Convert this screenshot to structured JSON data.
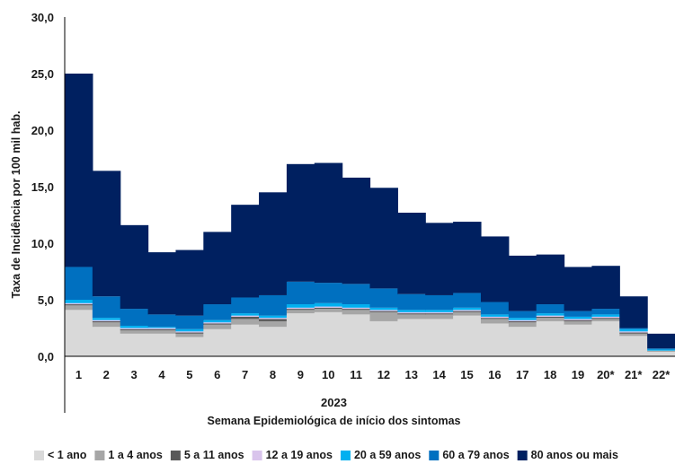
{
  "chart_data": {
    "type": "bar",
    "stacked": true,
    "ylabel": "Taxa de Incidência por 100 mil hab.",
    "xlabel": "Semana Epidemiológica de início dos sintomas",
    "group_label": "2023",
    "ylim": [
      0,
      30
    ],
    "y_ticks": [
      "0,0",
      "5,0",
      "10,0",
      "15,0",
      "20,0",
      "25,0",
      "30,0"
    ],
    "categories": [
      "1",
      "2",
      "3",
      "4",
      "5",
      "6",
      "7",
      "8",
      "9",
      "10",
      "11",
      "12",
      "13",
      "14",
      "15",
      "16",
      "17",
      "18",
      "19",
      "20*",
      "21*",
      "22*"
    ],
    "legend_position": "bottom",
    "grid": false,
    "series": [
      {
        "name": "< 1 ano",
        "color": "#d9d9d9",
        "values": [
          4.1,
          2.6,
          2.0,
          2.0,
          1.7,
          2.4,
          2.8,
          2.6,
          3.8,
          3.9,
          3.7,
          3.1,
          3.3,
          3.3,
          3.6,
          2.9,
          2.6,
          3.1,
          2.8,
          3.1,
          1.8,
          0.4
        ]
      },
      {
        "name": "1 a 4 anos",
        "color": "#a6a6a6",
        "values": [
          0.4,
          0.4,
          0.3,
          0.3,
          0.3,
          0.4,
          0.5,
          0.5,
          0.3,
          0.3,
          0.4,
          0.8,
          0.4,
          0.4,
          0.3,
          0.4,
          0.4,
          0.3,
          0.3,
          0.2,
          0.2,
          0.1
        ]
      },
      {
        "name": "5 a 11 anos",
        "color": "#595959",
        "values": [
          0.1,
          0.1,
          0.1,
          0.1,
          0.1,
          0.1,
          0.2,
          0.2,
          0.1,
          0.1,
          0.1,
          0.1,
          0.1,
          0.1,
          0.1,
          0.1,
          0.1,
          0.1,
          0.1,
          0.1,
          0.1,
          0.0
        ]
      },
      {
        "name": "12 a 19 anos",
        "color": "#d9c4ec",
        "values": [
          0.1,
          0.1,
          0.1,
          0.1,
          0.1,
          0.1,
          0.1,
          0.1,
          0.1,
          0.1,
          0.1,
          0.1,
          0.1,
          0.1,
          0.1,
          0.1,
          0.1,
          0.1,
          0.1,
          0.1,
          0.1,
          0.0
        ]
      },
      {
        "name": "20 a 59 anos",
        "color": "#00b0f0",
        "values": [
          0.3,
          0.2,
          0.2,
          0.1,
          0.2,
          0.2,
          0.2,
          0.2,
          0.3,
          0.3,
          0.3,
          0.2,
          0.2,
          0.2,
          0.2,
          0.2,
          0.2,
          0.2,
          0.2,
          0.2,
          0.2,
          0.1
        ]
      },
      {
        "name": "60 a 79 anos",
        "color": "#0070c0",
        "values": [
          2.9,
          1.9,
          1.5,
          1.1,
          1.2,
          1.4,
          1.4,
          1.8,
          2.0,
          1.8,
          1.8,
          1.7,
          1.4,
          1.3,
          1.3,
          1.1,
          0.6,
          0.8,
          0.5,
          0.5,
          0.1,
          0.1
        ]
      },
      {
        "name": "80 anos ou mais",
        "color": "#002060",
        "values": [
          17.1,
          11.1,
          7.4,
          5.5,
          5.8,
          6.4,
          8.2,
          9.1,
          10.4,
          10.6,
          9.4,
          8.9,
          7.2,
          6.4,
          6.3,
          5.8,
          4.9,
          4.4,
          3.9,
          3.8,
          2.8,
          1.3
        ]
      }
    ]
  }
}
